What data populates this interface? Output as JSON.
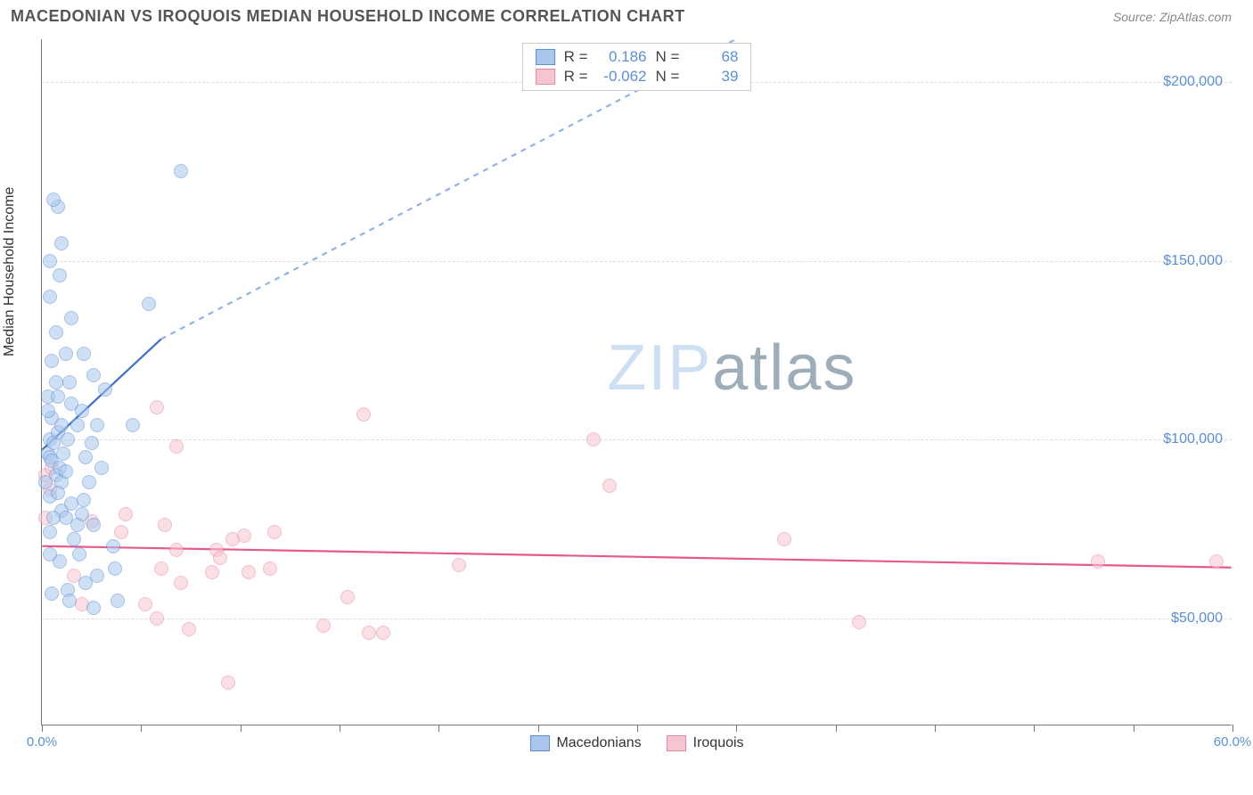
{
  "header": {
    "title": "MACEDONIAN VS IROQUOIS MEDIAN HOUSEHOLD INCOME CORRELATION CHART",
    "source": "Source: ZipAtlas.com"
  },
  "watermark": {
    "text_light": "ZIP",
    "text_dark": "atlas",
    "color_light": "#cddff2",
    "color_dark": "#9eaeb9"
  },
  "chart": {
    "type": "scatter",
    "background_color": "#ffffff",
    "grid_color": "#dddddd",
    "axis_color": "#777777",
    "yaxis_title": "Median Household Income",
    "yaxis_title_color": "#333333",
    "yaxis_title_fontsize": 16,
    "xlim": [
      0,
      60
    ],
    "ylim": [
      20000,
      212000
    ],
    "xticks": [
      0,
      5,
      10,
      15,
      20,
      25,
      30,
      35,
      40,
      45,
      50,
      55,
      60
    ],
    "xlabels": {
      "0": "0.0%",
      "60": "60.0%"
    },
    "yticks": [
      50000,
      100000,
      150000,
      200000
    ],
    "ylabels": {
      "50000": "$50,000",
      "100000": "$100,000",
      "150000": "$150,000",
      "200000": "$200,000"
    },
    "point_radius": 8,
    "point_opacity": 0.55,
    "point_border_width": 1
  },
  "series": {
    "macedonians": {
      "label": "Macedonians",
      "fill": "#a9c7ec",
      "stroke": "#5b8fd8",
      "R": "0.186",
      "N": "68",
      "trend": {
        "x1": 0,
        "y1": 97000,
        "x2": 6,
        "y2": 128000,
        "x3": 35,
        "y3": 212000,
        "solid_color": "#3b6fc8",
        "dashed_color": "#8fb3e8",
        "width": 2.2
      },
      "points": [
        [
          0.3,
          96000
        ],
        [
          0.4,
          95000
        ],
        [
          0.5,
          94000
        ],
        [
          0.4,
          100000
        ],
        [
          0.6,
          99000
        ],
        [
          0.8,
          102000
        ],
        [
          0.5,
          106000
        ],
        [
          0.3,
          108000
        ],
        [
          0.7,
          90000
        ],
        [
          0.9,
          92000
        ],
        [
          1.0,
          88000
        ],
        [
          1.2,
          91000
        ],
        [
          1.1,
          96000
        ],
        [
          1.3,
          100000
        ],
        [
          0.2,
          88000
        ],
        [
          0.4,
          84000
        ],
        [
          0.8,
          85000
        ],
        [
          1.0,
          80000
        ],
        [
          1.5,
          82000
        ],
        [
          1.2,
          78000
        ],
        [
          0.6,
          78000
        ],
        [
          0.4,
          74000
        ],
        [
          2.1,
          83000
        ],
        [
          2.4,
          88000
        ],
        [
          2.0,
          79000
        ],
        [
          1.8,
          76000
        ],
        [
          1.6,
          72000
        ],
        [
          2.6,
          76000
        ],
        [
          2.2,
          95000
        ],
        [
          2.5,
          99000
        ],
        [
          2.8,
          104000
        ],
        [
          3.0,
          92000
        ],
        [
          0.3,
          112000
        ],
        [
          0.7,
          116000
        ],
        [
          1.5,
          110000
        ],
        [
          1.8,
          104000
        ],
        [
          3.2,
          114000
        ],
        [
          2.6,
          118000
        ],
        [
          0.5,
          122000
        ],
        [
          1.2,
          124000
        ],
        [
          2.1,
          124000
        ],
        [
          0.7,
          130000
        ],
        [
          1.5,
          134000
        ],
        [
          0.4,
          140000
        ],
        [
          0.9,
          146000
        ],
        [
          0.4,
          150000
        ],
        [
          1.0,
          155000
        ],
        [
          0.8,
          165000
        ],
        [
          0.6,
          167000
        ],
        [
          5.4,
          138000
        ],
        [
          7.0,
          175000
        ],
        [
          2.8,
          62000
        ],
        [
          0.9,
          66000
        ],
        [
          1.3,
          58000
        ],
        [
          2.2,
          60000
        ],
        [
          3.8,
          55000
        ],
        [
          2.6,
          53000
        ],
        [
          1.4,
          55000
        ],
        [
          0.5,
          57000
        ],
        [
          0.4,
          68000
        ],
        [
          1.9,
          68000
        ],
        [
          3.7,
          64000
        ],
        [
          4.6,
          104000
        ],
        [
          3.6,
          70000
        ],
        [
          1.0,
          104000
        ],
        [
          1.4,
          116000
        ],
        [
          2.0,
          108000
        ],
        [
          0.8,
          112000
        ]
      ]
    },
    "iroquois": {
      "label": "Iroquois",
      "fill": "#f7c5d1",
      "stroke": "#e88aa0",
      "R": "-0.062",
      "N": "39",
      "trend": {
        "x1": 0,
        "y1": 70000,
        "x2": 60,
        "y2": 64000,
        "solid_color": "#e65a8a",
        "width": 2.2
      },
      "points": [
        [
          0.2,
          90000
        ],
        [
          0.5,
          92000
        ],
        [
          0.4,
          86000
        ],
        [
          5.8,
          109000
        ],
        [
          16.2,
          107000
        ],
        [
          6.8,
          98000
        ],
        [
          2.5,
          77000
        ],
        [
          4.0,
          74000
        ],
        [
          4.2,
          79000
        ],
        [
          6.2,
          76000
        ],
        [
          6.0,
          64000
        ],
        [
          6.8,
          69000
        ],
        [
          7.0,
          60000
        ],
        [
          8.6,
          63000
        ],
        [
          8.8,
          69000
        ],
        [
          9.0,
          67000
        ],
        [
          9.6,
          72000
        ],
        [
          10.4,
          63000
        ],
        [
          10.2,
          73000
        ],
        [
          11.5,
          64000
        ],
        [
          11.7,
          74000
        ],
        [
          27.8,
          100000
        ],
        [
          28.6,
          87000
        ],
        [
          21.0,
          65000
        ],
        [
          14.2,
          48000
        ],
        [
          15.4,
          56000
        ],
        [
          16.5,
          46000
        ],
        [
          17.2,
          46000
        ],
        [
          5.2,
          54000
        ],
        [
          5.8,
          50000
        ],
        [
          7.4,
          47000
        ],
        [
          9.4,
          32000
        ],
        [
          1.6,
          62000
        ],
        [
          2.0,
          54000
        ],
        [
          37.4,
          72000
        ],
        [
          41.2,
          49000
        ],
        [
          53.2,
          66000
        ],
        [
          59.2,
          66000
        ],
        [
          0.2,
          78000
        ]
      ]
    }
  },
  "stats_box": {
    "labels": {
      "R": "R =",
      "N": "N ="
    }
  },
  "bottom_legend": {
    "items": [
      "macedonians",
      "iroquois"
    ]
  }
}
